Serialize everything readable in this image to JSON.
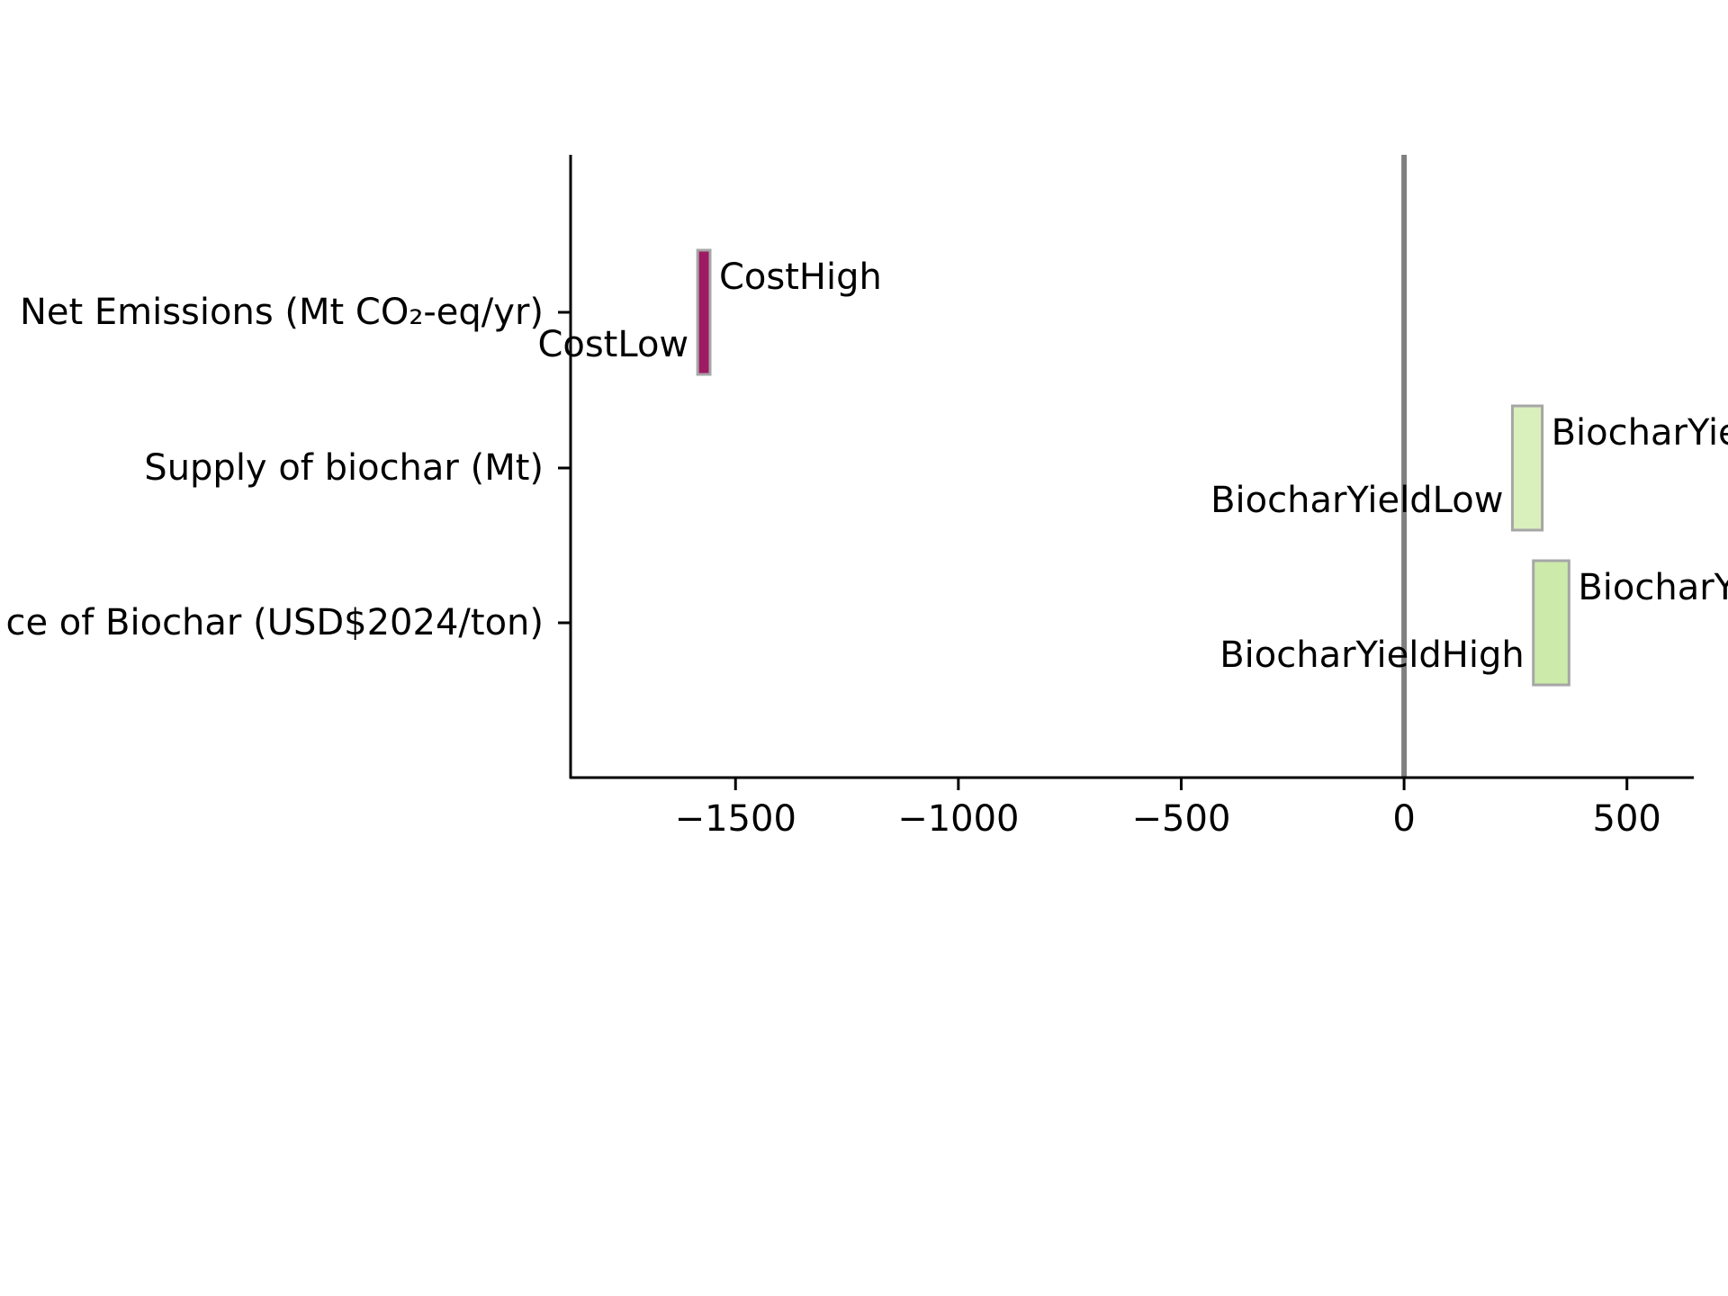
{
  "chart_data": {
    "type": "bar",
    "orientation": "horizontal",
    "subtype": "tornado",
    "title": "",
    "xlabel": "",
    "ylabel": "",
    "xlim": [
      -1870,
      650
    ],
    "xticks": [
      {
        "value": -1500,
        "label": "−1500"
      },
      {
        "value": -1000,
        "label": "−1000"
      },
      {
        "value": -500,
        "label": "−500"
      },
      {
        "value": 0,
        "label": "0"
      },
      {
        "value": 500,
        "label": "500"
      }
    ],
    "categories": [
      {
        "label": "Net Emissions (Mt CO₂-eq/yr)"
      },
      {
        "label": "Supply of biochar (Mt)"
      },
      {
        "label": "ce of Biochar (USD$2024/ton)"
      }
    ],
    "bars": [
      {
        "category": 0,
        "low": -1585,
        "high": -1557,
        "low_label": "CostLow",
        "high_label": "CostHigh",
        "color": "#9e1a63"
      },
      {
        "category": 1,
        "low": 243,
        "high": 310,
        "low_label": "BiocharYieldLow",
        "high_label": "BiocharYie",
        "color": "#d9f0bd"
      },
      {
        "category": 2,
        "low": 290,
        "high": 370,
        "low_label": "BiocharYieldHigh",
        "high_label": "BiocharY",
        "color": "#ccebaa"
      }
    ],
    "reference_line": {
      "value": 0,
      "color": "#808080"
    },
    "bar_edge_color": "#a6a6a6",
    "grid": false,
    "legend": "none"
  }
}
